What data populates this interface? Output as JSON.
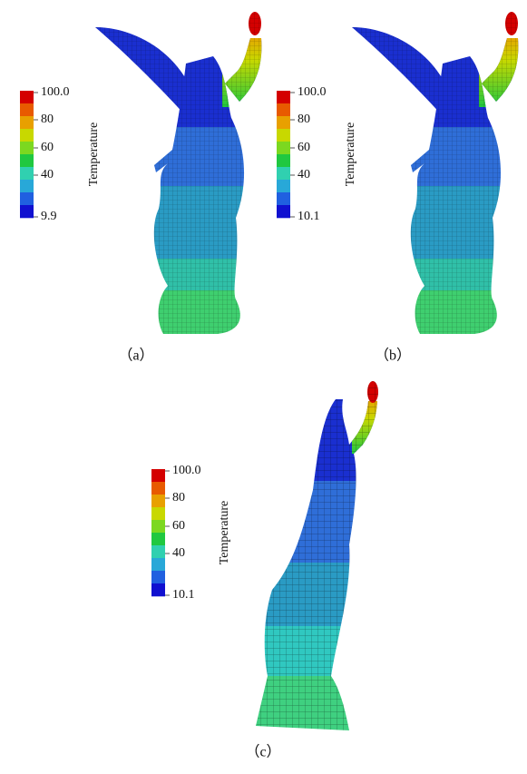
{
  "panels": [
    {
      "caption": "（a）",
      "colorbar": {
        "title": "Temperature",
        "ticks": [
          "100.0",
          "80",
          "60",
          "40",
          "9.9"
        ]
      }
    },
    {
      "caption": "（b）",
      "colorbar": {
        "title": "Temperature",
        "ticks": [
          "100.0",
          "80",
          "60",
          "40",
          "10.1"
        ]
      }
    },
    {
      "caption": "（c）",
      "colorbar": {
        "title": "Temperature",
        "ticks": [
          "100.0",
          "80",
          "60",
          "40",
          "10.1"
        ]
      }
    }
  ],
  "colorbar_colors": [
    "#d40000",
    "#e85a00",
    "#e8a000",
    "#c8d800",
    "#7cd820",
    "#20c840",
    "#30d0b0",
    "#28a8d8",
    "#2060e0",
    "#1010d0"
  ]
}
